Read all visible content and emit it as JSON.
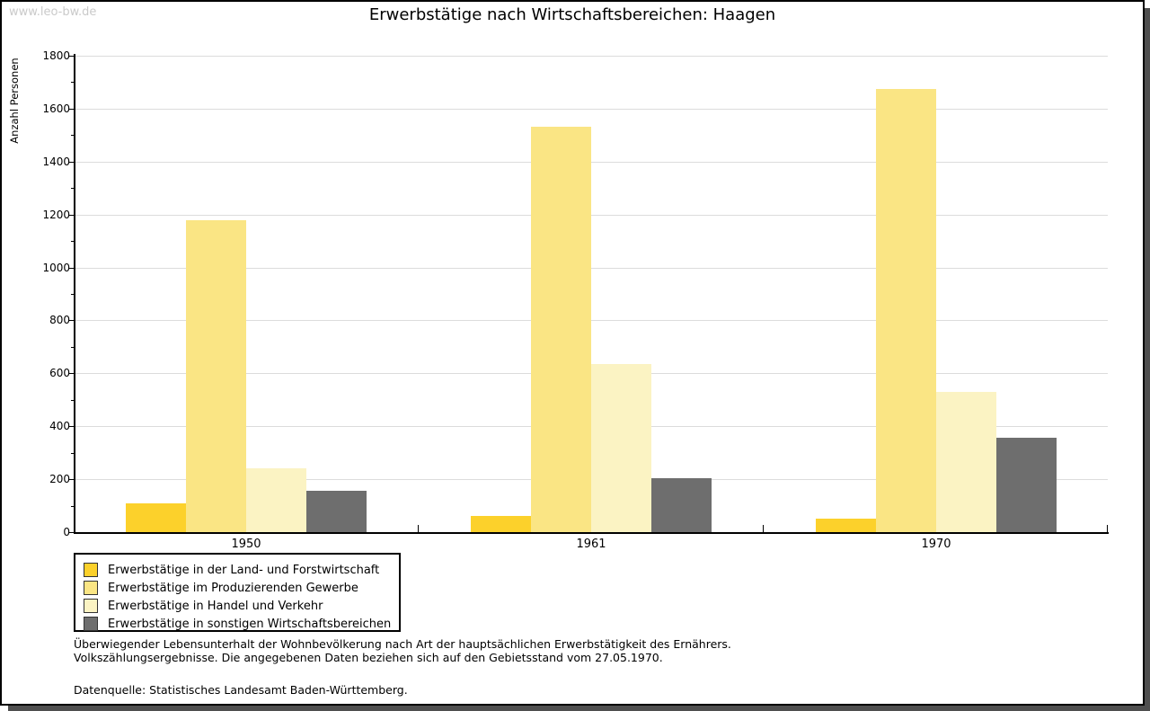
{
  "watermark": "www.leo-bw.de",
  "title": "Erwerbstätige nach Wirtschaftsbereichen: Haagen",
  "chart_data": {
    "type": "bar",
    "title": "Erwerbstätige nach Wirtschaftsbereichen: Haagen",
    "xlabel": "",
    "ylabel": "Anzahl Personen",
    "categories": [
      "1950",
      "1961",
      "1970"
    ],
    "series": [
      {
        "name": "Erwerbstätige in der Land- und Forstwirtschaft",
        "color": "#FCD12B",
        "values": [
          110,
          60,
          50
        ]
      },
      {
        "name": "Erwerbstätige im Produzierenden Gewerbe",
        "color": "#FAE584",
        "values": [
          1180,
          1530,
          1675
        ]
      },
      {
        "name": "Erwerbstätige in Handel und Verkehr",
        "color": "#FBF3C3",
        "values": [
          240,
          635,
          530
        ]
      },
      {
        "name": "Erwerbstätige in sonstigen Wirtschaftsbereichen",
        "color": "#6E6E6E",
        "values": [
          155,
          205,
          355
        ]
      }
    ],
    "ylim": [
      0,
      1800
    ],
    "ytick_step": 200,
    "ytick_labels": [
      "0",
      "200",
      "400",
      "600",
      "800",
      "1000",
      "1200",
      "1400",
      "1600",
      "1800"
    ],
    "grid": true,
    "legend_position": "bottom-left"
  },
  "colors": {
    "gridline": "#dcdcdc",
    "axis": "#000000",
    "frame_border": "#000000",
    "frame_shadow": "#4f4f4f",
    "watermark": "#cacaca"
  },
  "footer": {
    "line1": "Überwiegender Lebensunterhalt der Wohnbevölkerung nach Art der hauptsächlichen Erwerbstätigkeit des Ernährers.",
    "line2": "Volkszählungsergebnisse. Die angegebenen Daten beziehen sich auf den Gebietsstand vom 27.05.1970.",
    "source": "Datenquelle: Statistisches Landesamt Baden-Württemberg."
  }
}
